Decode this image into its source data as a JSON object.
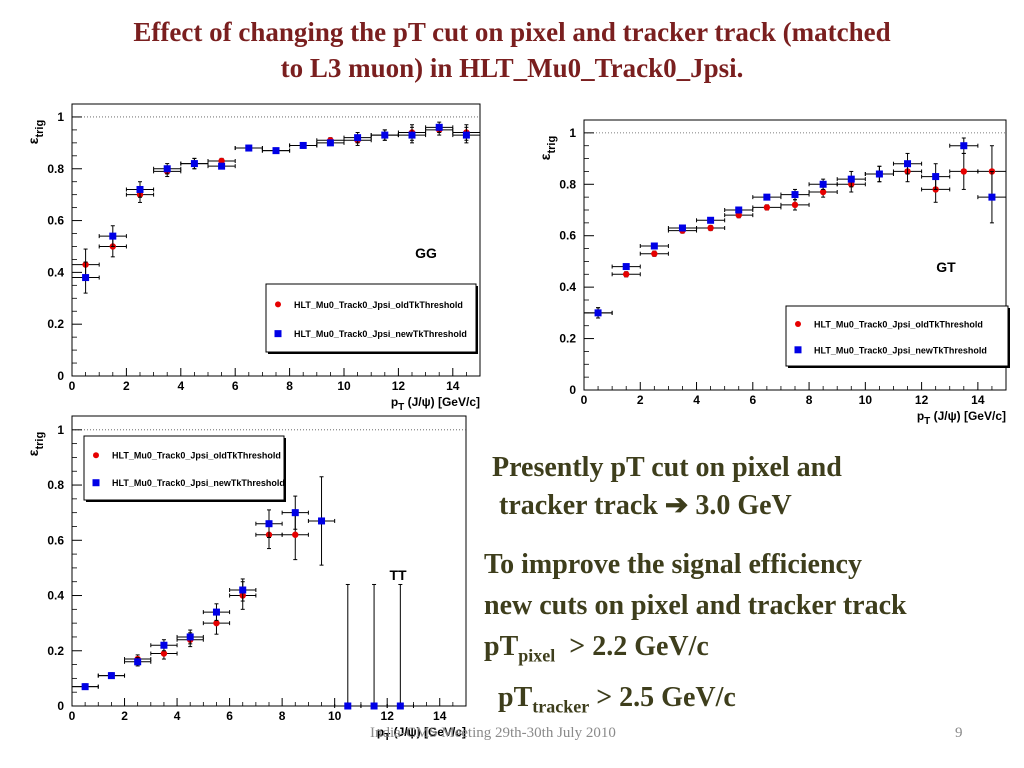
{
  "slide": {
    "title_line1": "Effect of changing the pT cut on pixel and tracker track (matched",
    "title_line2": "to L3 muon) in HLT_Mu0_Track0_Jpsi.",
    "footer": "India-CMS Meeting 29th-30th July 2010",
    "page_number": "9"
  },
  "notes": {
    "line1": "Presently pT cut on pixel and",
    "line2_prefix": "tracker track",
    "line2_arrow": "➔",
    "line2_suffix": "3.0 GeV",
    "improve_line1": "To improve the signal efficiency",
    "improve_line2": "new cuts on pixel and tracker track",
    "cut1_prefix": "pT",
    "cut1_sub": "pixel",
    "cut1_value": "> 2.2 GeV/c",
    "cut2_prefix": "pT",
    "cut2_sub": "tracker",
    "cut2_value": "> 2.5 GeV/c"
  },
  "colors": {
    "old_series": "#e60000",
    "new_series": "#0000e6",
    "title": "#7a1f1f",
    "notes": "#3e3e1c"
  },
  "chart_data": [
    {
      "type": "scatter",
      "label": "GG",
      "xlabel": "p_T (J/ψ) [GeV/c]",
      "ylabel": "ε_trig",
      "xlim": [
        0,
        15
      ],
      "ylim": [
        0,
        1.05
      ],
      "xticks": [
        0,
        2,
        4,
        6,
        8,
        10,
        12,
        14
      ],
      "yticks": [
        0,
        0.2,
        0.4,
        0.6,
        0.8,
        1
      ],
      "reference_line": 1,
      "legend_position": "bottom-right",
      "series": [
        {
          "name": "HLT_Mu0_Track0_Jpsi_oldTkThreshold",
          "marker": "circle",
          "x": [
            0.5,
            1.5,
            2.5,
            3.5,
            4.5,
            5.5,
            6.5,
            7.5,
            8.5,
            9.5,
            10.5,
            11.5,
            12.5,
            13.5,
            14.5
          ],
          "y": [
            0.43,
            0.5,
            0.7,
            0.79,
            0.82,
            0.83,
            0.88,
            0.87,
            0.89,
            0.91,
            0.91,
            0.93,
            0.94,
            0.95,
            0.94
          ],
          "yerr": [
            0.06,
            0.04,
            0.03,
            0.02,
            0.02,
            0.01,
            0.01,
            0.01,
            0.01,
            0.01,
            0.02,
            0.02,
            0.03,
            0.02,
            0.03
          ]
        },
        {
          "name": "HLT_Mu0_Track0_Jpsi_newTkThreshold",
          "marker": "square",
          "x": [
            0.5,
            1.5,
            2.5,
            3.5,
            4.5,
            5.5,
            6.5,
            7.5,
            8.5,
            9.5,
            10.5,
            11.5,
            12.5,
            13.5,
            14.5
          ],
          "y": [
            0.38,
            0.54,
            0.72,
            0.8,
            0.82,
            0.81,
            0.88,
            0.87,
            0.89,
            0.9,
            0.92,
            0.93,
            0.93,
            0.96,
            0.93
          ],
          "yerr": [
            0.06,
            0.04,
            0.03,
            0.02,
            0.02,
            0.01,
            0.01,
            0.01,
            0.01,
            0.01,
            0.02,
            0.02,
            0.03,
            0.02,
            0.03
          ]
        }
      ]
    },
    {
      "type": "scatter",
      "label": "GT",
      "xlabel": "p_T (J/ψ) [GeV/c]",
      "ylabel": "ε_trig",
      "xlim": [
        0,
        15
      ],
      "ylim": [
        0,
        1.05
      ],
      "xticks": [
        0,
        2,
        4,
        6,
        8,
        10,
        12,
        14
      ],
      "yticks": [
        0,
        0.2,
        0.4,
        0.6,
        0.8,
        1
      ],
      "reference_line": 1,
      "legend_position": "bottom-right",
      "series": [
        {
          "name": "HLT_Mu0_Track0_Jpsi_oldTkThreshold",
          "marker": "circle",
          "x": [
            0.5,
            1.5,
            2.5,
            3.5,
            4.5,
            5.5,
            6.5,
            7.5,
            8.5,
            9.5,
            10.5,
            11.5,
            12.5,
            13.5,
            14.5
          ],
          "y": [
            0.3,
            0.45,
            0.53,
            0.62,
            0.63,
            0.68,
            0.71,
            0.72,
            0.77,
            0.8,
            0.84,
            0.85,
            0.78,
            0.85,
            0.85
          ],
          "yerr": [
            0.02,
            0.01,
            0.01,
            0.01,
            0.01,
            0.01,
            0.01,
            0.02,
            0.02,
            0.03,
            0.03,
            0.04,
            0.05,
            0.07,
            0.1
          ]
        },
        {
          "name": "HLT_Mu0_Track0_Jpsi_newTkThreshold",
          "marker": "square",
          "x": [
            0.5,
            1.5,
            2.5,
            3.5,
            4.5,
            5.5,
            6.5,
            7.5,
            8.5,
            9.5,
            10.5,
            11.5,
            12.5,
            13.5,
            14.5
          ],
          "y": [
            0.3,
            0.48,
            0.56,
            0.63,
            0.66,
            0.7,
            0.75,
            0.76,
            0.8,
            0.82,
            0.84,
            0.88,
            0.83,
            0.95,
            0.75
          ],
          "yerr": [
            0.02,
            0.01,
            0.01,
            0.01,
            0.01,
            0.01,
            0.01,
            0.02,
            0.02,
            0.03,
            0.03,
            0.04,
            0.05,
            0.03,
            0.1
          ]
        }
      ]
    },
    {
      "type": "scatter",
      "label": "TT",
      "xlabel": "p_T (J/ψ) [GeV/c]",
      "ylabel": "ε_trig",
      "xlim": [
        0,
        15
      ],
      "ylim": [
        0,
        1.05
      ],
      "xticks": [
        0,
        2,
        4,
        6,
        8,
        10,
        12,
        14
      ],
      "yticks": [
        0,
        0.2,
        0.4,
        0.6,
        0.8,
        1
      ],
      "reference_line": 1,
      "legend_position": "top-left",
      "series": [
        {
          "name": "HLT_Mu0_Track0_Jpsi_oldTkThreshold",
          "marker": "circle",
          "x": [
            0.5,
            1.5,
            2.5,
            3.5,
            4.5,
            5.5,
            6.5,
            7.5,
            8.5
          ],
          "y": [
            0.07,
            0.11,
            0.17,
            0.19,
            0.24,
            0.3,
            0.4,
            0.62,
            0.62
          ],
          "yerr": [
            0.01,
            0.01,
            0.015,
            0.02,
            0.025,
            0.04,
            0.05,
            0.05,
            0.09
          ]
        },
        {
          "name": "HLT_Mu0_Track0_Jpsi_newTkThreshold",
          "marker": "square",
          "x": [
            0.5,
            1.5,
            2.5,
            3.5,
            4.5,
            5.5,
            6.5,
            7.5,
            8.5,
            9.5,
            10.5,
            11.5,
            12.5
          ],
          "y": [
            0.07,
            0.11,
            0.16,
            0.22,
            0.25,
            0.34,
            0.42,
            0.66,
            0.7,
            0.67,
            0.0,
            0.0,
            0.0
          ],
          "yerr": [
            0.01,
            0.01,
            0.015,
            0.02,
            0.025,
            0.03,
            0.04,
            0.05,
            0.06,
            0.16,
            0.44,
            0.44,
            0.44
          ]
        }
      ]
    }
  ]
}
